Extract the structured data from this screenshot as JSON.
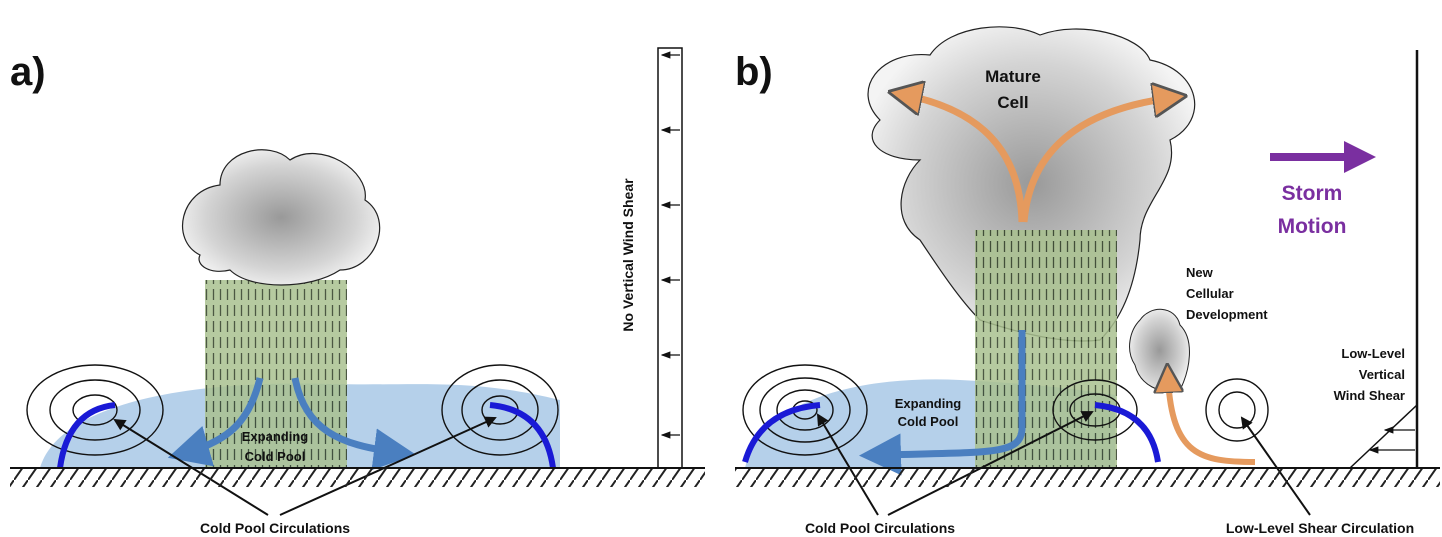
{
  "panels": [
    {
      "label": "a)",
      "cold_pool": [
        "Expanding",
        "Cold Pool"
      ],
      "circulations": "Cold Pool Circulations",
      "shear": "No Vertical Wind Shear"
    },
    {
      "label": "b)",
      "cell": [
        "Mature",
        "Cell"
      ],
      "motion": [
        "Storm",
        "Motion"
      ],
      "new_cell": [
        "New",
        "Cellular",
        "Development"
      ],
      "shear": [
        "Low-Level",
        "Vertical",
        "Wind Shear"
      ],
      "cold_pool": [
        "Expanding",
        "Cold Pool"
      ],
      "circulations": "Cold Pool Circulations",
      "shear_circulation": "Low-Level Shear Circulation"
    }
  ]
}
